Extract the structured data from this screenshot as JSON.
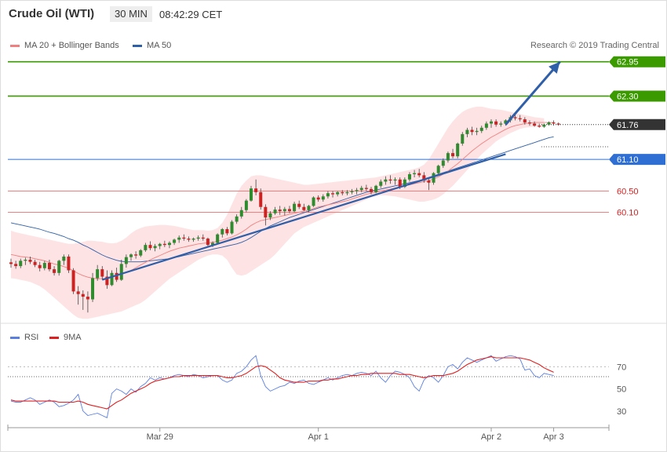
{
  "header": {
    "instrument": "Crude Oil (WTI)",
    "timeframe": "30 MIN",
    "time": "08:42:29 CET"
  },
  "legend": {
    "ma20_label": "MA 20 + Bollinger Bands",
    "ma50_label": "MA 50",
    "rsi_label": "RSI",
    "ma9_label": "9MA"
  },
  "credit": "Research © 2019 Trading Central",
  "colors": {
    "resistance": "#3a9a00",
    "support": "#f08080",
    "pivot": "#2f6fd4",
    "current": "#333333",
    "ma20": "#f08080",
    "ma50": "#2f5fa8",
    "bollinger_fill": "#fde3e3",
    "candle_up": "#2e8b2e",
    "candle_down": "#cc2222",
    "rsi": "#5b7fe0",
    "ma9": "#e02020",
    "trendline": "#2f5fa8"
  },
  "price_levels": [
    {
      "value": 62.95,
      "label": "62.95",
      "kind": "resistance"
    },
    {
      "value": 62.3,
      "label": "62.30",
      "kind": "resistance"
    },
    {
      "value": 61.76,
      "label": "61.76",
      "kind": "current"
    },
    {
      "value": 61.1,
      "label": "61.10",
      "kind": "pivot"
    },
    {
      "value": 60.5,
      "label": "60.50",
      "kind": "support"
    },
    {
      "value": 60.1,
      "label": "60.10",
      "kind": "support"
    }
  ],
  "chart_data": {
    "type": "candlestick",
    "x_labels": [
      "Mar 29",
      "Apr 1",
      "Apr 2",
      "Apr 3"
    ],
    "price_ylim": [
      58.1,
      63.05
    ],
    "candles": [
      [
        59.15,
        59.22,
        59.05,
        59.12
      ],
      [
        59.12,
        59.18,
        59.03,
        59.08
      ],
      [
        59.08,
        59.22,
        59.04,
        59.18
      ],
      [
        59.18,
        59.24,
        59.1,
        59.2
      ],
      [
        59.2,
        59.26,
        59.12,
        59.16
      ],
      [
        59.16,
        59.2,
        59.06,
        59.1
      ],
      [
        59.1,
        59.16,
        58.98,
        59.04
      ],
      [
        59.04,
        59.18,
        59.0,
        59.14
      ],
      [
        59.14,
        59.2,
        58.98,
        59.02
      ],
      [
        59.02,
        59.08,
        58.9,
        58.95
      ],
      [
        58.95,
        59.2,
        58.9,
        59.18
      ],
      [
        59.18,
        59.3,
        59.1,
        59.26
      ],
      [
        59.26,
        59.3,
        58.95,
        59.0
      ],
      [
        59.0,
        59.04,
        58.55,
        58.6
      ],
      [
        58.6,
        58.7,
        58.35,
        58.55
      ],
      [
        58.55,
        58.62,
        58.25,
        58.5
      ],
      [
        58.5,
        58.6,
        58.2,
        58.45
      ],
      [
        58.45,
        58.95,
        58.4,
        58.85
      ],
      [
        58.85,
        59.1,
        58.8,
        59.02
      ],
      [
        59.02,
        59.08,
        58.82,
        58.88
      ],
      [
        58.88,
        59.0,
        58.65,
        58.72
      ],
      [
        58.72,
        59.0,
        58.7,
        58.95
      ],
      [
        58.95,
        59.05,
        58.78,
        58.82
      ],
      [
        58.82,
        59.2,
        58.8,
        59.12
      ],
      [
        59.12,
        59.3,
        59.05,
        59.25
      ],
      [
        59.25,
        59.32,
        59.18,
        59.3
      ],
      [
        59.3,
        59.36,
        59.22,
        59.28
      ],
      [
        59.28,
        59.4,
        59.25,
        59.38
      ],
      [
        59.38,
        59.52,
        59.35,
        59.48
      ],
      [
        59.48,
        59.55,
        59.38,
        59.42
      ],
      [
        59.42,
        59.5,
        59.36,
        59.46
      ],
      [
        59.46,
        59.52,
        59.4,
        59.5
      ],
      [
        59.5,
        59.56,
        59.44,
        59.48
      ],
      [
        59.48,
        59.55,
        59.42,
        59.52
      ],
      [
        59.52,
        59.6,
        59.48,
        59.58
      ],
      [
        59.58,
        59.66,
        59.52,
        59.62
      ],
      [
        59.62,
        59.68,
        59.56,
        59.6
      ],
      [
        59.6,
        59.64,
        59.54,
        59.58
      ],
      [
        59.58,
        59.62,
        59.54,
        59.6
      ],
      [
        59.6,
        59.66,
        59.56,
        59.62
      ],
      [
        59.62,
        59.68,
        59.56,
        59.6
      ],
      [
        59.6,
        59.62,
        59.44,
        59.48
      ],
      [
        59.48,
        59.55,
        59.44,
        59.52
      ],
      [
        59.52,
        59.7,
        59.5,
        59.68
      ],
      [
        59.68,
        59.8,
        59.62,
        59.78
      ],
      [
        59.78,
        59.82,
        59.66,
        59.7
      ],
      [
        59.7,
        59.95,
        59.68,
        59.92
      ],
      [
        59.92,
        60.06,
        59.88,
        60.02
      ],
      [
        60.02,
        60.2,
        59.98,
        60.14
      ],
      [
        60.14,
        60.35,
        60.1,
        60.32
      ],
      [
        60.32,
        60.6,
        60.3,
        60.55
      ],
      [
        60.55,
        60.72,
        60.42,
        60.48
      ],
      [
        60.48,
        60.55,
        60.15,
        60.2
      ],
      [
        60.2,
        60.25,
        59.85,
        60.0
      ],
      [
        60.0,
        60.12,
        59.95,
        60.08
      ],
      [
        60.08,
        60.2,
        60.05,
        60.15
      ],
      [
        60.15,
        60.22,
        60.05,
        60.12
      ],
      [
        60.12,
        60.2,
        60.04,
        60.16
      ],
      [
        60.16,
        60.22,
        60.08,
        60.12
      ],
      [
        60.12,
        60.3,
        60.1,
        60.26
      ],
      [
        60.26,
        60.32,
        60.16,
        60.2
      ],
      [
        60.2,
        60.26,
        60.12,
        60.14
      ],
      [
        60.14,
        60.24,
        60.1,
        60.22
      ],
      [
        60.22,
        60.4,
        60.2,
        60.38
      ],
      [
        60.38,
        60.42,
        60.3,
        60.34
      ],
      [
        60.34,
        60.44,
        60.3,
        60.4
      ],
      [
        60.4,
        60.5,
        60.36,
        60.46
      ],
      [
        60.46,
        60.5,
        60.38,
        60.44
      ],
      [
        60.44,
        60.5,
        60.4,
        60.48
      ],
      [
        60.48,
        60.52,
        60.42,
        60.46
      ],
      [
        60.46,
        60.52,
        60.42,
        60.48
      ],
      [
        60.48,
        60.54,
        60.44,
        60.5
      ],
      [
        60.5,
        60.56,
        60.44,
        60.52
      ],
      [
        60.52,
        60.6,
        60.48,
        60.56
      ],
      [
        60.56,
        60.62,
        60.5,
        60.54
      ],
      [
        60.54,
        60.58,
        60.44,
        60.48
      ],
      [
        60.48,
        60.62,
        60.46,
        60.6
      ],
      [
        60.6,
        60.72,
        60.56,
        60.68
      ],
      [
        60.68,
        60.78,
        60.62,
        60.72
      ],
      [
        60.72,
        60.8,
        60.64,
        60.7
      ],
      [
        60.7,
        60.76,
        60.62,
        60.72
      ],
      [
        60.72,
        60.76,
        60.54,
        60.58
      ],
      [
        60.58,
        60.76,
        60.56,
        60.72
      ],
      [
        60.72,
        60.86,
        60.68,
        60.82
      ],
      [
        60.82,
        60.9,
        60.76,
        60.84
      ],
      [
        60.84,
        60.92,
        60.76,
        60.8
      ],
      [
        60.8,
        60.86,
        60.66,
        60.7
      ],
      [
        60.7,
        60.76,
        60.52,
        60.66
      ],
      [
        60.66,
        60.86,
        60.62,
        60.84
      ],
      [
        60.84,
        61.0,
        60.8,
        60.98
      ],
      [
        60.98,
        61.12,
        60.94,
        61.08
      ],
      [
        61.08,
        61.25,
        61.04,
        61.22
      ],
      [
        61.22,
        61.3,
        61.12,
        61.16
      ],
      [
        61.16,
        61.42,
        61.12,
        61.4
      ],
      [
        61.4,
        61.62,
        61.36,
        61.58
      ],
      [
        61.58,
        61.7,
        61.52,
        61.66
      ],
      [
        61.66,
        61.72,
        61.56,
        61.62
      ],
      [
        61.62,
        61.7,
        61.56,
        61.64
      ],
      [
        61.64,
        61.74,
        61.6,
        61.7
      ],
      [
        61.7,
        61.82,
        61.66,
        61.78
      ],
      [
        61.78,
        61.86,
        61.7,
        61.82
      ],
      [
        61.82,
        61.86,
        61.72,
        61.76
      ],
      [
        61.76,
        61.82,
        61.72,
        61.78
      ],
      [
        61.78,
        61.86,
        61.74,
        61.84
      ],
      [
        61.84,
        61.94,
        61.8,
        61.9
      ],
      [
        61.9,
        61.96,
        61.84,
        61.88
      ],
      [
        61.88,
        61.94,
        61.82,
        61.86
      ],
      [
        61.86,
        61.9,
        61.76,
        61.8
      ],
      [
        61.8,
        61.84,
        61.74,
        61.78
      ],
      [
        61.78,
        61.82,
        61.72,
        61.74
      ],
      [
        61.74,
        61.78,
        61.7,
        61.72
      ],
      [
        61.72,
        61.78,
        61.7,
        61.76
      ],
      [
        61.76,
        61.82,
        61.74,
        61.8
      ],
      [
        61.8,
        61.84,
        61.74,
        61.78
      ],
      [
        61.78,
        61.8,
        61.74,
        61.76
      ]
    ],
    "ma50": [
      59.9,
      59.88,
      59.86,
      59.84,
      59.82,
      59.8,
      59.78,
      59.75,
      59.72,
      59.7,
      59.67,
      59.64,
      59.6,
      59.57,
      59.53,
      59.48,
      59.44,
      59.39,
      59.34,
      59.29,
      59.25,
      59.22,
      59.19,
      59.17,
      59.16,
      59.16,
      59.16,
      59.16,
      59.17,
      59.18,
      59.19,
      59.2,
      59.21,
      59.22,
      59.24,
      59.26,
      59.28,
      59.3,
      59.32,
      59.34,
      59.36,
      59.38,
      59.4,
      59.42,
      59.44,
      59.46,
      59.48,
      59.5,
      59.53,
      59.57,
      59.62,
      59.68,
      59.74,
      59.79,
      59.84,
      59.88,
      59.92,
      59.96,
      60.0,
      60.03,
      60.06,
      60.09,
      60.12,
      60.15,
      60.18,
      60.21,
      60.24,
      60.27,
      60.3,
      60.33,
      60.36,
      60.39,
      60.42,
      60.45,
      60.48,
      60.5,
      60.52,
      60.54,
      60.56,
      60.58,
      60.6,
      60.62,
      60.64,
      60.66,
      60.68,
      60.7,
      60.73,
      60.76,
      60.79,
      60.82,
      60.85,
      60.88,
      60.91,
      60.94,
      60.97,
      61.0,
      61.03,
      61.06,
      61.09,
      61.12,
      61.15,
      61.18,
      61.21,
      61.24,
      61.27,
      61.3,
      61.33,
      61.36,
      61.39,
      61.42,
      61.45,
      61.48,
      61.51,
      61.53
    ],
    "ma20": [
      59.3,
      59.28,
      59.26,
      59.25,
      59.24,
      59.22,
      59.2,
      59.18,
      59.15,
      59.12,
      59.1,
      59.07,
      59.04,
      58.99,
      58.94,
      58.9,
      58.87,
      58.85,
      58.84,
      58.84,
      58.85,
      58.87,
      58.9,
      58.93,
      58.96,
      59.0,
      59.05,
      59.1,
      59.15,
      59.2,
      59.24,
      59.28,
      59.32,
      59.36,
      59.39,
      59.42,
      59.44,
      59.46,
      59.48,
      59.5,
      59.51,
      59.52,
      59.53,
      59.55,
      59.57,
      59.6,
      59.63,
      59.67,
      59.72,
      59.78,
      59.85,
      59.9,
      59.94,
      59.96,
      59.98,
      60.0,
      60.02,
      60.04,
      60.06,
      60.08,
      60.1,
      60.12,
      60.14,
      60.17,
      60.2,
      60.22,
      60.24,
      60.26,
      60.28,
      60.3,
      60.32,
      60.35,
      60.38,
      60.41,
      60.44,
      60.46,
      60.48,
      60.5,
      60.52,
      60.54,
      60.56,
      60.58,
      60.6,
      60.62,
      60.64,
      60.66,
      60.68,
      60.7,
      60.73,
      60.77,
      60.82,
      60.88,
      60.95,
      61.02,
      61.1,
      61.18,
      61.26,
      61.33,
      61.4,
      61.46,
      61.52,
      61.57,
      61.62,
      61.67,
      61.71,
      61.74,
      61.76,
      61.78,
      61.79,
      61.8,
      61.8,
      61.8,
      61.8,
      61.8
    ],
    "bb_upper": [
      59.75,
      59.72,
      59.7,
      59.68,
      59.66,
      59.64,
      59.62,
      59.6,
      59.58,
      59.56,
      59.54,
      59.52,
      59.5,
      59.5,
      59.52,
      59.54,
      59.56,
      59.56,
      59.55,
      59.54,
      59.52,
      59.51,
      59.52,
      59.56,
      59.62,
      59.7,
      59.76,
      59.8,
      59.83,
      59.84,
      59.85,
      59.86,
      59.86,
      59.85,
      59.84,
      59.82,
      59.8,
      59.78,
      59.76,
      59.76,
      59.76,
      59.75,
      59.76,
      59.8,
      59.9,
      60.05,
      60.25,
      60.45,
      60.6,
      60.7,
      60.78,
      60.8,
      60.8,
      60.78,
      60.76,
      60.74,
      60.72,
      60.7,
      60.68,
      60.66,
      60.64,
      60.62,
      60.62,
      60.63,
      60.64,
      60.65,
      60.66,
      60.67,
      60.68,
      60.69,
      60.7,
      60.71,
      60.72,
      60.73,
      60.74,
      60.75,
      60.76,
      60.78,
      60.8,
      60.82,
      60.84,
      60.86,
      60.88,
      60.9,
      60.92,
      60.95,
      61.0,
      61.1,
      61.25,
      61.4,
      61.55,
      61.7,
      61.82,
      61.92,
      62.0,
      62.05,
      62.08,
      62.1,
      62.1,
      62.08,
      62.06,
      62.05,
      62.04,
      62.02,
      62.0,
      61.98,
      61.96,
      61.94,
      61.92,
      61.9,
      61.89,
      61.88
    ],
    "bb_lower": [
      58.85,
      58.84,
      58.82,
      58.8,
      58.78,
      58.74,
      58.7,
      58.64,
      58.56,
      58.48,
      58.4,
      58.32,
      58.24,
      58.16,
      58.1,
      58.08,
      58.08,
      58.1,
      58.12,
      58.14,
      58.16,
      58.18,
      58.2,
      58.22,
      58.26,
      58.3,
      58.34,
      58.38,
      58.44,
      58.52,
      58.6,
      58.68,
      58.76,
      58.84,
      58.9,
      58.96,
      59.02,
      59.08,
      59.14,
      59.2,
      59.24,
      59.28,
      59.3,
      59.3,
      59.28,
      59.2,
      59.05,
      58.92,
      58.9,
      58.92,
      58.98,
      59.04,
      59.1,
      59.16,
      59.22,
      59.3,
      59.4,
      59.5,
      59.6,
      59.7,
      59.76,
      59.82,
      59.86,
      59.9,
      59.94,
      59.98,
      60.02,
      60.06,
      60.1,
      60.14,
      60.18,
      60.22,
      60.26,
      60.3,
      60.34,
      60.38,
      60.4,
      60.42,
      60.42,
      60.41,
      60.4,
      60.38,
      60.36,
      60.34,
      60.32,
      60.3,
      60.3,
      60.32,
      60.34,
      60.38,
      60.44,
      60.52,
      60.6,
      60.7,
      60.8,
      60.9,
      61.0,
      61.1,
      61.2,
      61.28,
      61.36,
      61.44,
      61.5,
      61.55,
      61.6,
      61.64,
      61.68,
      61.7,
      61.71,
      61.72,
      61.72,
      61.72
    ],
    "trendline": {
      "start": [
        19,
        58.82
      ],
      "end": [
        103,
        61.2
      ]
    },
    "arrow": {
      "start": [
        103,
        61.76
      ],
      "end": [
        113,
        62.95
      ]
    },
    "rsi_ylim": [
      15,
      95
    ],
    "rsi_ticks": [
      30,
      50,
      70
    ],
    "rsi_levels": [
      70,
      61
    ],
    "rsi": [
      39,
      38,
      38,
      40,
      42,
      40,
      36,
      38,
      40,
      38,
      34,
      35,
      37,
      40,
      45,
      30,
      26,
      27,
      28,
      26,
      24,
      46,
      50,
      48,
      45,
      50,
      47,
      52,
      55,
      60,
      58,
      60,
      59,
      60,
      62,
      63,
      62,
      61,
      63,
      62,
      60,
      61,
      62,
      62,
      58,
      56,
      58,
      64,
      66,
      70,
      76,
      80,
      62,
      52,
      48,
      50,
      52,
      53,
      56,
      55,
      57,
      58,
      55,
      54,
      56,
      58,
      60,
      58,
      60,
      62,
      63,
      62,
      64,
      65,
      64,
      62,
      66,
      60,
      56,
      62,
      66,
      65,
      63,
      60,
      52,
      48,
      58,
      62,
      60,
      56,
      62,
      70,
      72,
      68,
      74,
      78,
      76,
      74,
      76,
      78,
      80,
      75,
      77,
      79,
      80,
      79,
      77,
      67,
      68,
      62,
      60,
      64,
      63,
      62
    ],
    "ma9": [
      40,
      39,
      39,
      39,
      39,
      39,
      39,
      39,
      39,
      39,
      38,
      38,
      38,
      38,
      39,
      38,
      36,
      35,
      34,
      33,
      32,
      35,
      38,
      40,
      43,
      46,
      48,
      50,
      52,
      55,
      57,
      58,
      59,
      60,
      61,
      61,
      62,
      62,
      62,
      62,
      62,
      62,
      62,
      62,
      61,
      60,
      60,
      61,
      62,
      64,
      67,
      70,
      71,
      70,
      67,
      64,
      60,
      58,
      57,
      56,
      56,
      56,
      57,
      57,
      57,
      58,
      58,
      59,
      59,
      60,
      61,
      62,
      62,
      63,
      63,
      64,
      64,
      64,
      64,
      64,
      64,
      63,
      63,
      63,
      62,
      61,
      60,
      61,
      62,
      62,
      62,
      63,
      64,
      66,
      69,
      72,
      74,
      76,
      77,
      78,
      79,
      78,
      78,
      78,
      78,
      78,
      78,
      77,
      76,
      74,
      72,
      69,
      67,
      65
    ]
  }
}
